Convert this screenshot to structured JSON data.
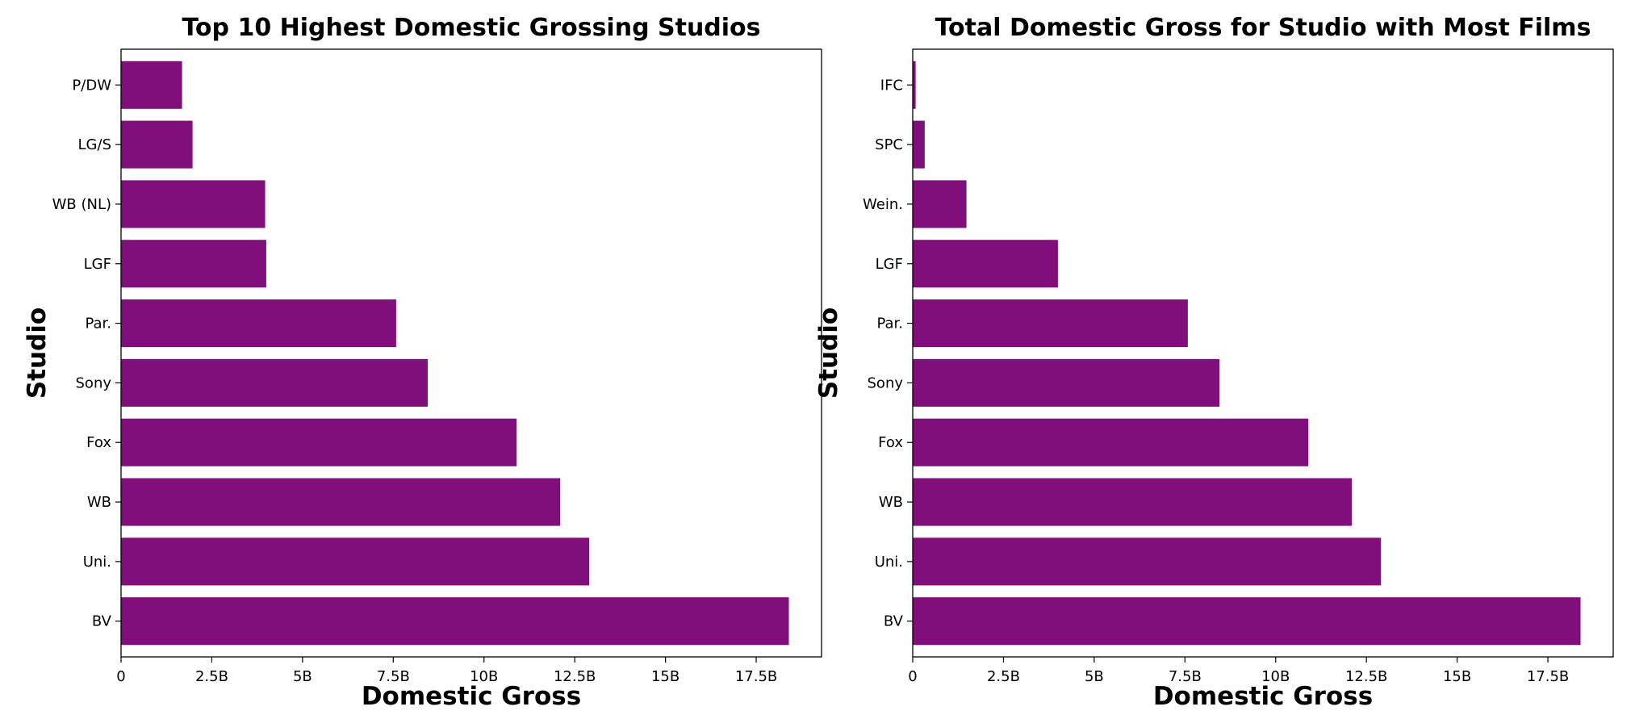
{
  "chart_data": [
    {
      "type": "bar",
      "orientation": "horizontal",
      "title": "Top 10 Highest Domestic Grossing Studios",
      "xlabel": "Domestic Gross",
      "ylabel": "Studio",
      "categories": [
        "BV",
        "Uni.",
        "WB",
        "Fox",
        "Sony",
        "Par.",
        "LGF",
        "WB (NL)",
        "LG/S",
        "P/DW"
      ],
      "values": [
        18.4,
        12.9,
        12.1,
        10.9,
        8.45,
        7.58,
        4.0,
        3.97,
        1.97,
        1.68
      ],
      "value_unit": "billion",
      "xlim": [
        0,
        19.3
      ],
      "xticks": [
        0,
        2.5,
        5,
        7.5,
        10,
        12.5,
        15,
        17.5
      ],
      "xtick_labels": [
        "0",
        "2.5B",
        "5B",
        "7.5B",
        "10B",
        "12.5B",
        "15B",
        "17.5B"
      ],
      "bar_color": "#800f7c",
      "grid": false
    },
    {
      "type": "bar",
      "orientation": "horizontal",
      "title": "Total Domestic Gross for Studio with Most Films",
      "xlabel": "Domestic Gross",
      "ylabel": "Studio",
      "categories": [
        "BV",
        "Uni.",
        "WB",
        "Fox",
        "Sony",
        "Par.",
        "LGF",
        "Wein.",
        "SPC",
        "IFC"
      ],
      "values": [
        18.4,
        12.9,
        12.1,
        10.9,
        8.45,
        7.58,
        4.0,
        1.48,
        0.33,
        0.08
      ],
      "value_unit": "billion",
      "xlim": [
        0,
        19.3
      ],
      "xticks": [
        0,
        2.5,
        5,
        7.5,
        10,
        12.5,
        15,
        17.5
      ],
      "xtick_labels": [
        "0",
        "2.5B",
        "5B",
        "7.5B",
        "10B",
        "12.5B",
        "15B",
        "17.5B"
      ],
      "bar_color": "#800f7c",
      "grid": false
    }
  ]
}
